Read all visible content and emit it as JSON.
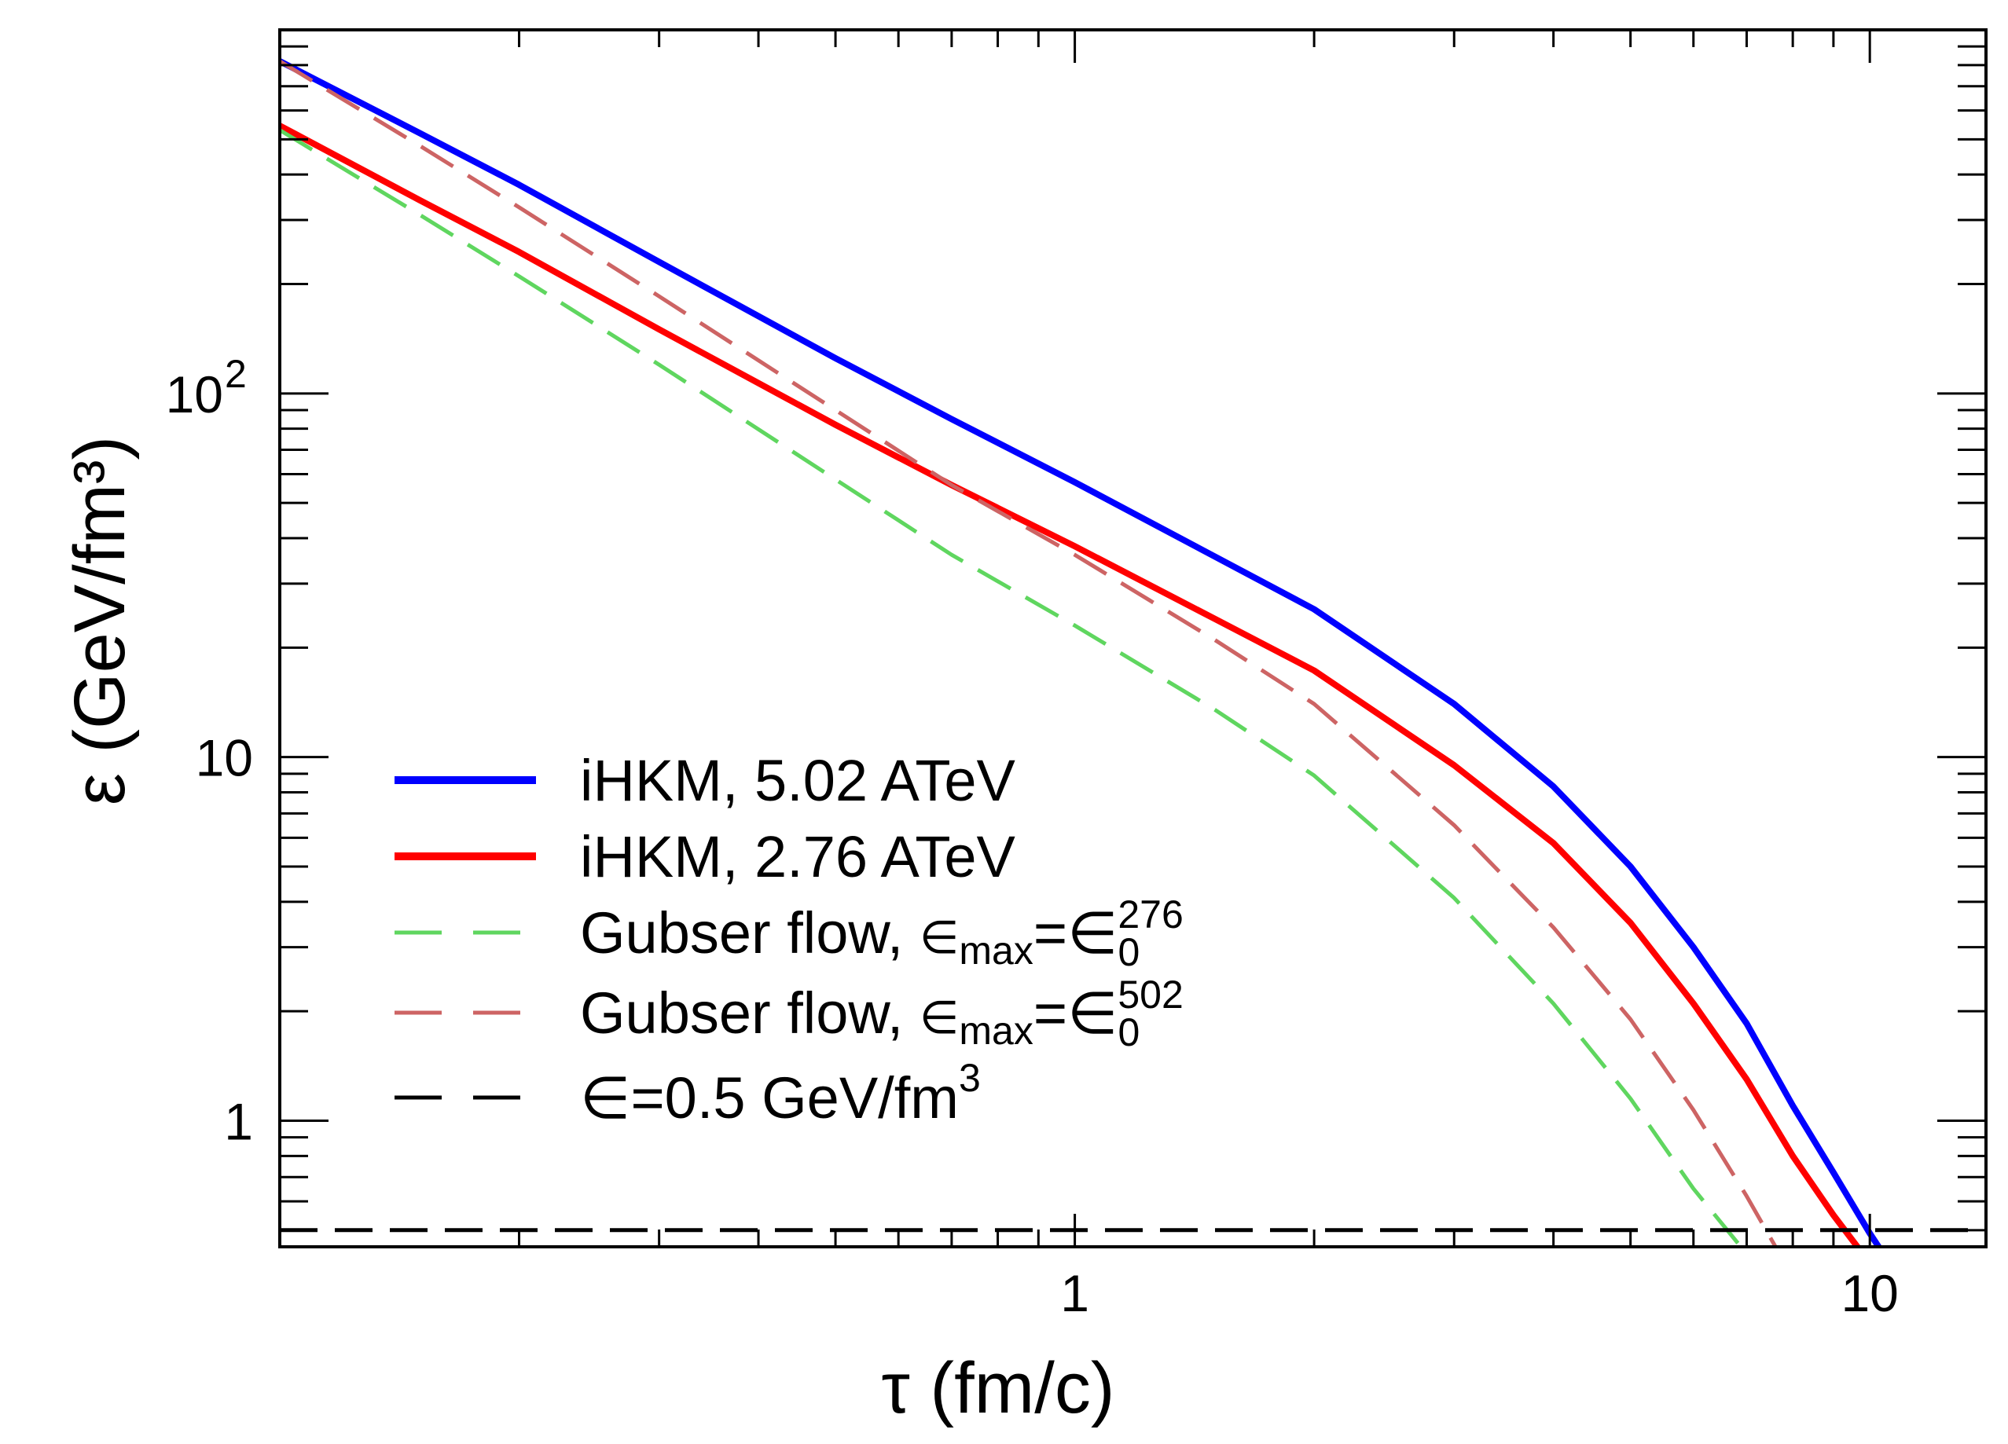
{
  "chart_data": {
    "type": "line",
    "title": "",
    "xlabel": "τ (fm/c)",
    "ylabel": "ε (GeV/fm³)",
    "xscale": "log",
    "yscale": "log",
    "xlim": [
      0.1,
      14
    ],
    "ylim": [
      0.45,
      1000
    ],
    "x_ticks": [
      {
        "value": 1,
        "label": "1"
      },
      {
        "value": 10,
        "label": "10"
      }
    ],
    "y_ticks": [
      {
        "value": 1,
        "label": "1"
      },
      {
        "value": 10,
        "label": "10"
      },
      {
        "value": 100,
        "label": "10",
        "sup": "2"
      }
    ],
    "legend_position": "lower-left",
    "series": [
      {
        "name": "iHKM, 5.02 ATeV",
        "legend_label": "iHKM, 5.02 ATeV",
        "color": "#0000ff",
        "style": "solid",
        "x": [
          0.1,
          0.15,
          0.2,
          0.3,
          0.5,
          0.7,
          1.0,
          1.5,
          2.0,
          3.0,
          4.0,
          5.0,
          6.0,
          7.0,
          8.0,
          9.0,
          10.0,
          10.4
        ],
        "values": [
          820,
          520,
          375,
          230,
          125,
          85,
          57,
          35.6,
          25.5,
          14,
          8.3,
          5.0,
          3.0,
          1.85,
          1.1,
          0.72,
          0.49,
          0.43
        ]
      },
      {
        "name": "iHKM, 2.76 ATeV",
        "legend_label": "iHKM, 2.76 ATeV",
        "color": "#ff0000",
        "style": "solid",
        "x": [
          0.1,
          0.15,
          0.2,
          0.3,
          0.5,
          0.7,
          1.0,
          1.5,
          2.0,
          3.0,
          4.0,
          5.0,
          6.0,
          7.0,
          8.0,
          9.0,
          9.8
        ],
        "values": [
          545,
          340,
          245,
          150,
          82,
          56,
          38,
          24,
          17.3,
          9.5,
          5.8,
          3.5,
          2.1,
          1.3,
          0.8,
          0.55,
          0.43
        ]
      },
      {
        "name": "Gubser flow, εmax=ε0 276",
        "legend_label": "Gubser flow, ",
        "legend_sub": "max",
        "legend_sup": "276",
        "color": "#5fd65f",
        "style": "dashed",
        "x": [
          0.1,
          0.15,
          0.2,
          0.3,
          0.5,
          0.7,
          1.0,
          1.5,
          2.0,
          3.0,
          4.0,
          5.0,
          6.0,
          7.0
        ],
        "values": [
          530,
          310,
          210,
          120,
          58,
          36,
          23,
          13.5,
          8.9,
          4.1,
          2.1,
          1.15,
          0.65,
          0.43
        ]
      },
      {
        "name": "Gubser flow, εmax=ε0 502",
        "legend_label": "Gubser flow, ",
        "legend_sub": "max",
        "legend_sup": "502",
        "color": "#cd6464",
        "style": "dashed",
        "x": [
          0.1,
          0.15,
          0.2,
          0.3,
          0.5,
          0.7,
          1.0,
          1.5,
          2.0,
          3.0,
          4.0,
          5.0,
          6.0,
          7.0,
          7.7
        ],
        "values": [
          820,
          480,
          325,
          185,
          90,
          56,
          36,
          21,
          14,
          6.5,
          3.4,
          1.9,
          1.07,
          0.62,
          0.43
        ]
      },
      {
        "name": "ε=0.5 GeV/fm³",
        "legend_label": "=0.5 GeV/fm",
        "legend_sup": "3",
        "color": "#000000",
        "style": "dashed",
        "x": [
          0.1,
          14
        ],
        "values": [
          0.5,
          0.5
        ]
      }
    ]
  }
}
